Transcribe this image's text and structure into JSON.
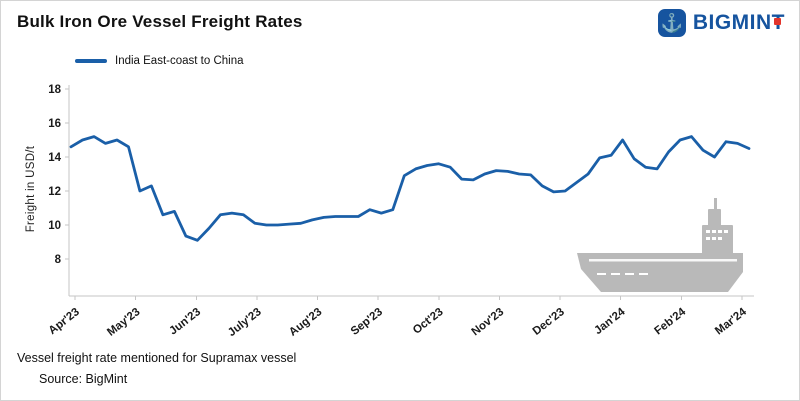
{
  "header": {
    "title": "Bulk Iron Ore Vessel Freight Rates",
    "brand_name": "BIGMINT"
  },
  "legend": {
    "label": "India East-coast to China"
  },
  "chart_data": {
    "type": "line",
    "title": "Bulk Iron Ore Vessel Freight Rates",
    "ylabel": "Freight in USD/t",
    "xlabel": "",
    "ylim": [
      8,
      18
    ],
    "yticks": [
      8,
      10,
      12,
      14,
      16,
      18
    ],
    "x_tick_labels": [
      "Apr'23",
      "May'23",
      "Jun'23",
      "July'23",
      "Aug'23",
      "Sep'23",
      "Oct'23",
      "Nov'23",
      "Dec'23",
      "Jan'24",
      "Feb'24",
      "Mar'24"
    ],
    "grid": false,
    "legend_position": "top-left",
    "series": [
      {
        "name": "India East-coast to China",
        "color": "#1a5fa8",
        "values": [
          14.6,
          15.0,
          15.2,
          14.8,
          15.0,
          14.6,
          12.0,
          12.3,
          10.6,
          10.8,
          9.35,
          9.1,
          9.8,
          10.6,
          10.7,
          10.6,
          10.1,
          10.0,
          10.0,
          10.05,
          10.1,
          10.3,
          10.45,
          10.5,
          10.5,
          10.5,
          10.9,
          10.7,
          10.9,
          12.9,
          13.3,
          13.5,
          13.6,
          13.4,
          12.7,
          12.65,
          13.0,
          13.2,
          13.15,
          13.0,
          12.95,
          12.3,
          11.95,
          12.0,
          12.5,
          13.0,
          13.95,
          14.1,
          15.0,
          13.9,
          13.4,
          13.3,
          14.3,
          15.0,
          15.2,
          14.4,
          14.0,
          14.9,
          14.8,
          14.5
        ]
      }
    ]
  },
  "icons": {
    "brand_icon": "anchor-icon",
    "registered_mark": "registered-trademark-square"
  },
  "footer": {
    "note": "Vessel freight rate mentioned for Supramax vessel",
    "source_label": "Source:  BigMint"
  }
}
